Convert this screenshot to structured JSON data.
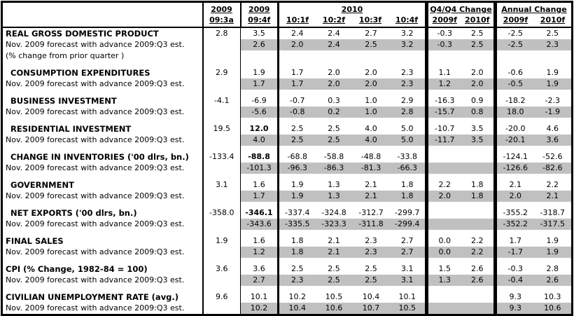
{
  "table": {
    "colors": {
      "shaded": "#c0c0c0",
      "border": "#000000",
      "text": "#000000"
    },
    "header": {
      "c1_top": "2009",
      "c1_bot": "09:3a",
      "c2_top": "2009",
      "c2_bot": "09:4f",
      "g2010_label": "2010",
      "g2010_cols": [
        "10:1f",
        "10:2f",
        "10:3f",
        "10:4f"
      ],
      "gq4_label": "Q4/Q4 Change",
      "gq4_cols": [
        "2009f",
        "2010f"
      ],
      "gann_label": "Annual Change",
      "gann_cols": [
        "2009f",
        "2010f"
      ]
    },
    "row_secondary_label": "Nov. 2009 forecast with advance 2009:Q3 est.",
    "rows": [
      {
        "label": "REAL GROSS DOMESTIC PRODUCT",
        "indent": false,
        "note": "(% change from prior quarter )",
        "current": [
          "2.8",
          "3.5",
          "2.4",
          "2.4",
          "2.7",
          "3.2",
          "-0.3",
          "2.5",
          "-2.5",
          "2.5"
        ],
        "previous": [
          "",
          "2.6",
          "2.0",
          "2.4",
          "2.5",
          "3.2",
          "-0.3",
          "2.5",
          "-2.5",
          "2.3"
        ],
        "bold_cols": []
      },
      {
        "label": "CONSUMPTION EXPENDITURES",
        "indent": true,
        "current": [
          "2.9",
          "1.9",
          "1.7",
          "2.0",
          "2.0",
          "2.3",
          "1.1",
          "2.0",
          "-0.6",
          "1.9"
        ],
        "previous": [
          "",
          "1.7",
          "1.7",
          "2.0",
          "2.0",
          "2.3",
          "1.2",
          "2.0",
          "-0.5",
          "1.9"
        ],
        "bold_cols": []
      },
      {
        "label": "BUSINESS INVESTMENT",
        "indent": true,
        "current": [
          "-4.1",
          "-6.9",
          "-0.7",
          "0.3",
          "1.0",
          "2.9",
          "-16.3",
          "0.9",
          "-18.2",
          "-2.3"
        ],
        "previous": [
          "",
          "-5.6",
          "-0.8",
          "0.2",
          "1.0",
          "2.8",
          "-15.7",
          "0.8",
          "18.0",
          "-1.9"
        ],
        "bold_cols": []
      },
      {
        "label": "RESIDENTIAL INVESTMENT",
        "indent": true,
        "current": [
          "19.5",
          "12.0",
          "2.5",
          "2.5",
          "4.0",
          "5.0",
          "-10.7",
          "3.5",
          "-20.0",
          "4.6"
        ],
        "previous": [
          "",
          "4.0",
          "2.5",
          "2.5",
          "4.0",
          "5.0",
          "-11.7",
          "3.5",
          "-20.1",
          "3.6"
        ],
        "bold_cols": [
          1
        ]
      },
      {
        "label": "CHANGE IN INVENTORIES ('00 dlrs, bn.)",
        "indent": true,
        "current": [
          "-133.4",
          "-88.8",
          "-68.8",
          "-58.8",
          "-48.8",
          "-33.8",
          "",
          "",
          "-124.1",
          "-52.6"
        ],
        "previous": [
          "",
          "-101.3",
          "-96.3",
          "-86.3",
          "-81.3",
          "-66.3",
          "",
          "",
          "-126.6",
          "-82.6"
        ],
        "bold_cols": [
          1
        ]
      },
      {
        "label": "GOVERNMENT",
        "indent": true,
        "current": [
          "3.1",
          "1.6",
          "1.9",
          "1.3",
          "2.1",
          "1.8",
          "2.2",
          "1.8",
          "2.1",
          "2.2"
        ],
        "previous": [
          "",
          "1.7",
          "1.9",
          "1.3",
          "2.1",
          "1.8",
          "2.0",
          "1.8",
          "2.0",
          "2.1"
        ],
        "bold_cols": []
      },
      {
        "label": "NET EXPORTS ('00 dlrs, bn.)",
        "indent": true,
        "current": [
          "-358.0",
          "-346.1",
          "-337.4",
          "-324.8",
          "-312.7",
          "-299.7",
          "",
          "",
          "-355.2",
          "-318.7"
        ],
        "previous": [
          "",
          "-343.6",
          "-335.5",
          "-323.3",
          "-311.8",
          "-299.4",
          "",
          "",
          "-352.2",
          "-317.5"
        ],
        "bold_cols": [
          1
        ]
      },
      {
        "label": "FINAL SALES",
        "indent": false,
        "current": [
          "1.9",
          "1.6",
          "1.8",
          "2.1",
          "2.3",
          "2.7",
          "0.0",
          "2.2",
          "1.7",
          "1.9"
        ],
        "previous": [
          "",
          "1.2",
          "1.8",
          "2.1",
          "2.3",
          "2.7",
          "0.0",
          "2.2",
          "-1.7",
          "1.9"
        ],
        "bold_cols": []
      },
      {
        "label": "CPI (% Change, 1982-84 = 100)",
        "indent": false,
        "current": [
          "3.6",
          "3.6",
          "2.5",
          "2.5",
          "2.5",
          "3.1",
          "1.5",
          "2.6",
          "-0.3",
          "2.8"
        ],
        "previous": [
          "",
          "2.7",
          "2.3",
          "2.5",
          "2.5",
          "3.1",
          "1.3",
          "2.6",
          "-0.4",
          "2.6"
        ],
        "bold_cols": []
      },
      {
        "label": "CIVILIAN UNEMPLOYMENT RATE (avg.)",
        "indent": false,
        "current": [
          "9.6",
          "10.1",
          "10.2",
          "10.5",
          "10.4",
          "10.1",
          "",
          "",
          "9.3",
          "10.3"
        ],
        "previous": [
          "",
          "10.2",
          "10.4",
          "10.6",
          "10.7",
          "10.5",
          "",
          "",
          "9.3",
          "10.6"
        ],
        "bold_cols": []
      }
    ]
  }
}
